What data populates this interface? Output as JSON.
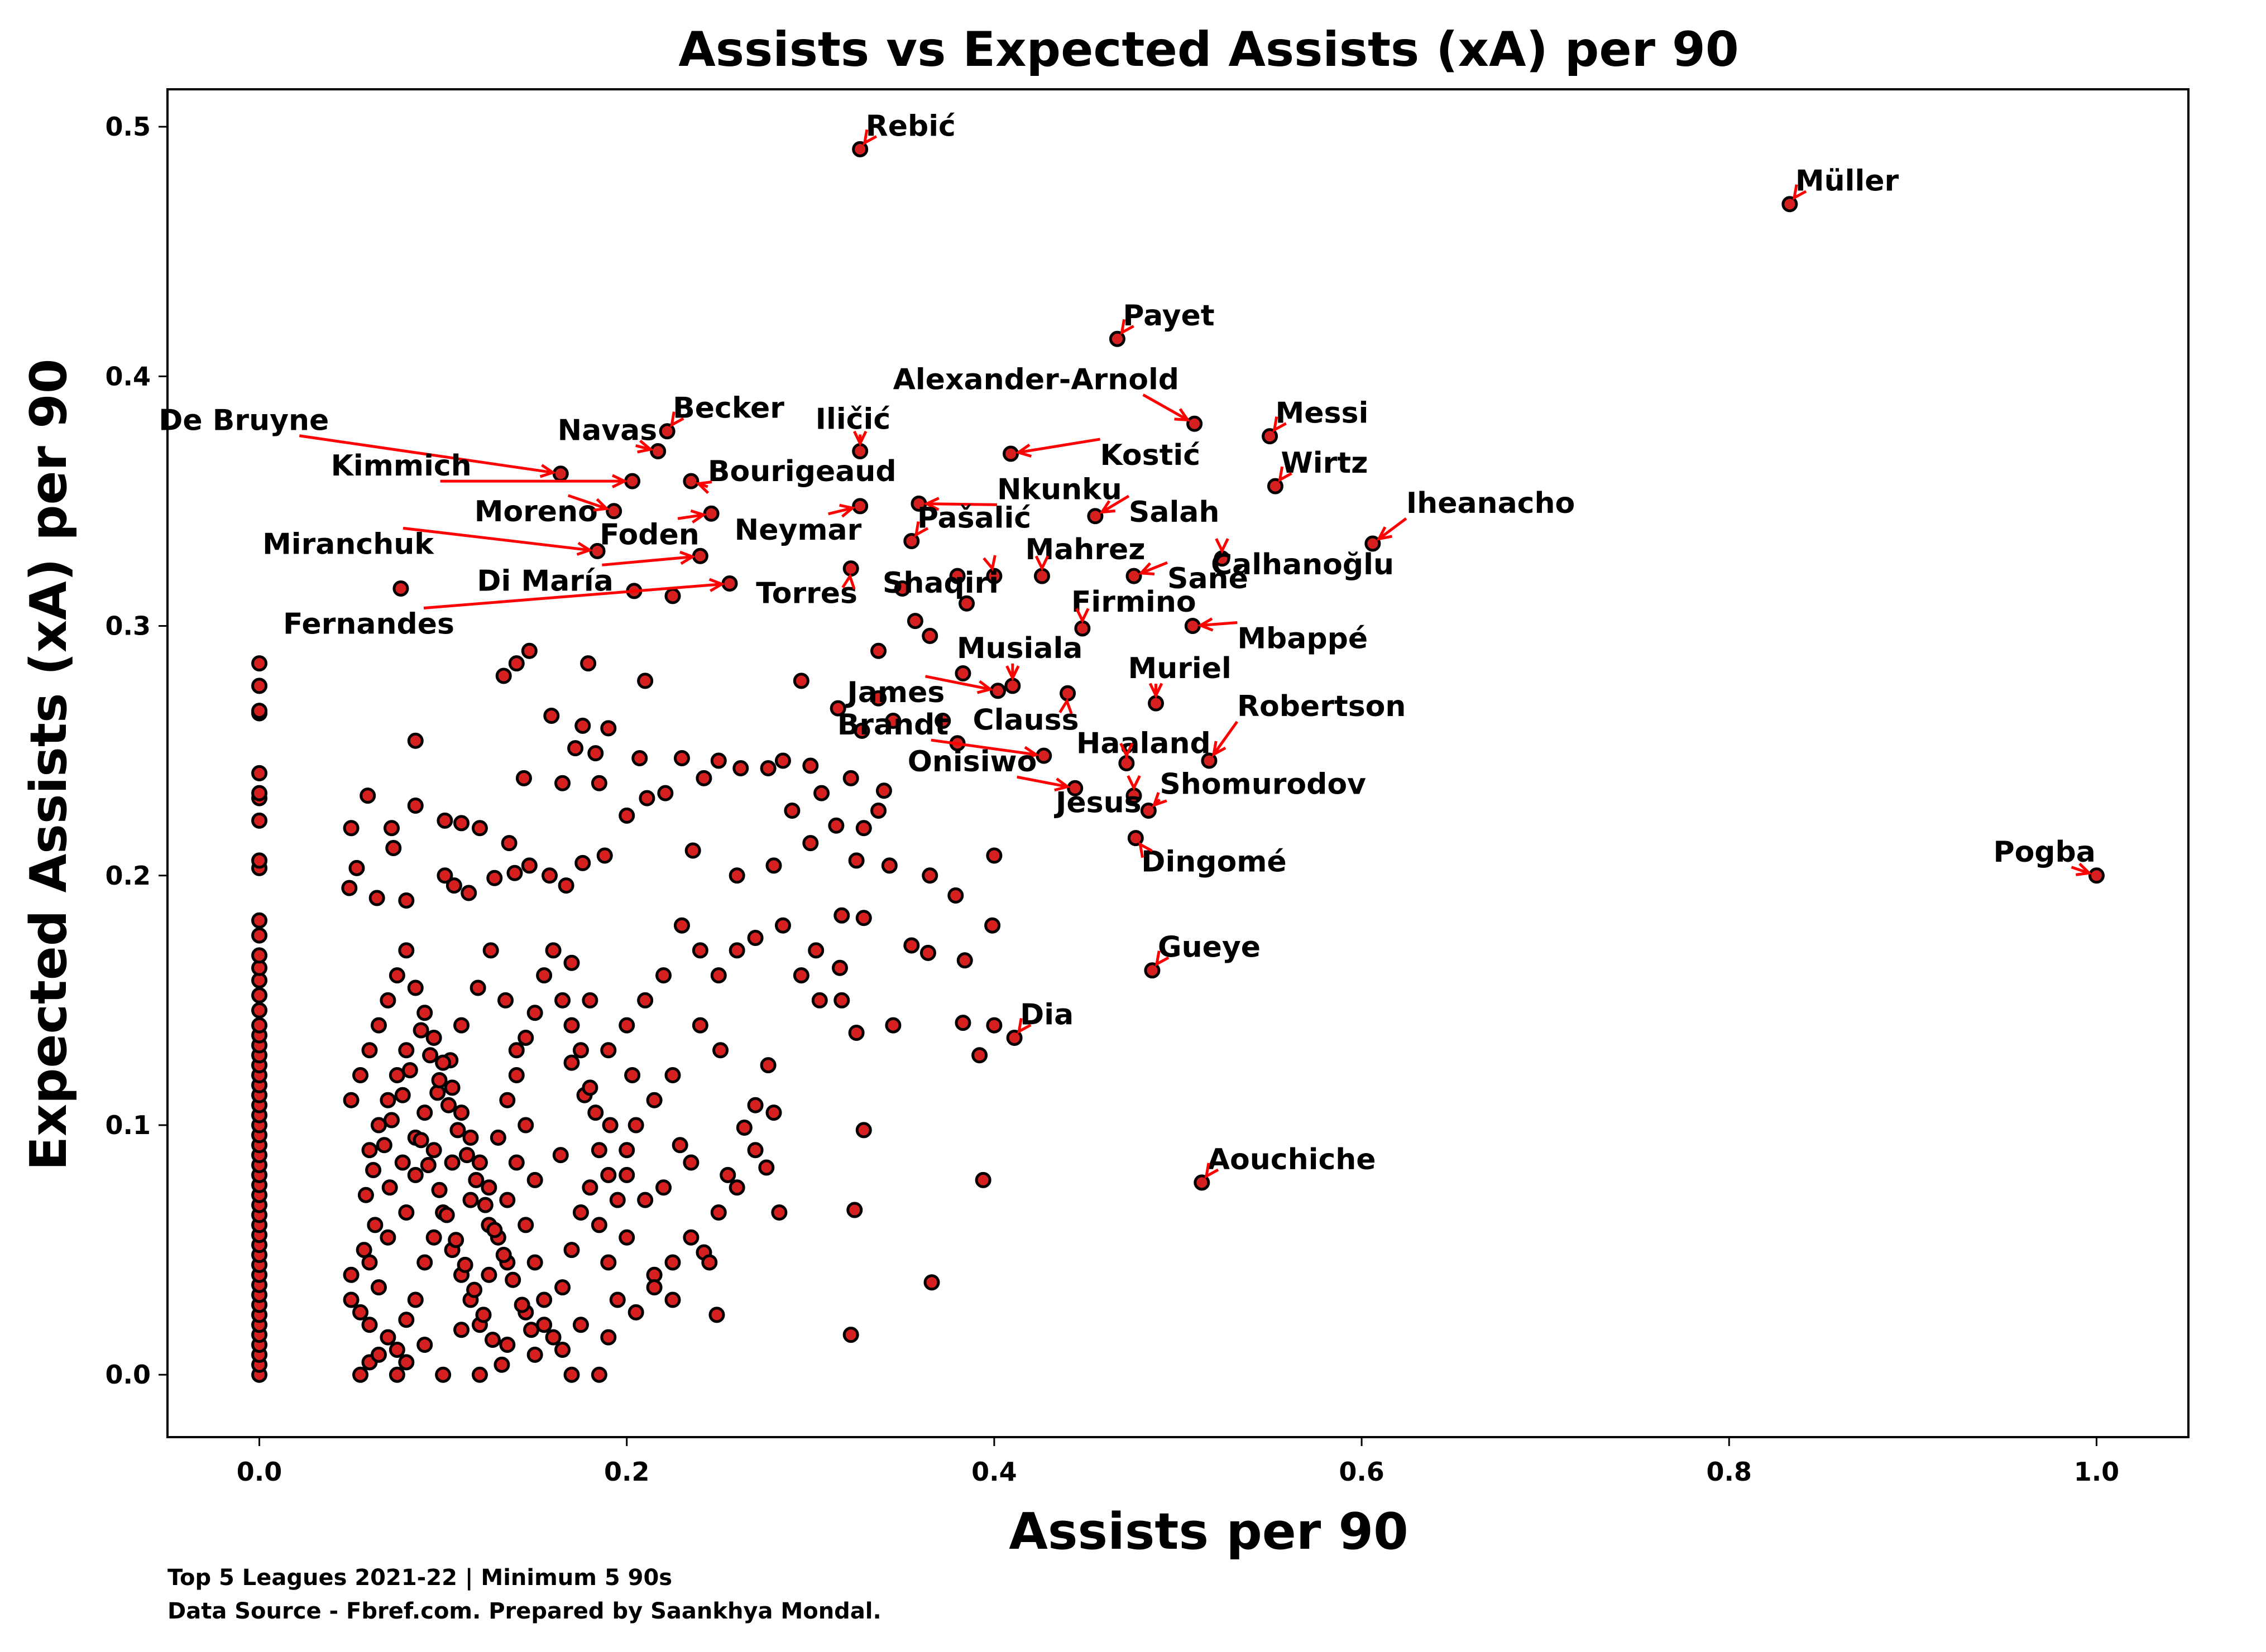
{
  "chart_data": {
    "type": "scatter",
    "title": "Assists vs Expected Assists (xA) per 90",
    "xlabel": "Assists per 90",
    "ylabel": "Expected Assists (xA) per 90",
    "xlim": [
      -0.05,
      1.05
    ],
    "ylim": [
      -0.025,
      0.515
    ],
    "xticks": [
      "0.0",
      "0.2",
      "0.4",
      "0.6",
      "0.8",
      "1.0"
    ],
    "yticks": [
      "0.0",
      "0.1",
      "0.2",
      "0.3",
      "0.4",
      "0.5"
    ],
    "grid": false,
    "marker_color": "#d61f1f",
    "marker_edge_color": "#000000",
    "arrow_color": "#ff0000",
    "footnote_line1": "Top 5 Leagues 2021-22 | Minimum 5 90s",
    "footnote_line2": "Data Source - Fbref.com. Prepared by Saankhya Mondal.",
    "labeled_points": [
      {
        "name": "Rebić",
        "x": 0.327,
        "y": 0.491
      },
      {
        "name": "Müller",
        "x": 0.833,
        "y": 0.469
      },
      {
        "name": "Payet",
        "x": 0.467,
        "y": 0.415
      },
      {
        "name": "Alexander-Arnold",
        "x": 0.509,
        "y": 0.381
      },
      {
        "name": "Messi",
        "x": 0.55,
        "y": 0.376
      },
      {
        "name": "Becker",
        "x": 0.222,
        "y": 0.378
      },
      {
        "name": "Navas",
        "x": 0.217,
        "y": 0.37
      },
      {
        "name": "Iličić",
        "x": 0.327,
        "y": 0.37
      },
      {
        "name": "Kostić",
        "x": 0.409,
        "y": 0.369
      },
      {
        "name": "De Bruyne",
        "x": 0.164,
        "y": 0.361
      },
      {
        "name": "Kimmich",
        "x": 0.203,
        "y": 0.358
      },
      {
        "name": "Bourigeaud",
        "x": 0.235,
        "y": 0.358
      },
      {
        "name": "Wirtz",
        "x": 0.553,
        "y": 0.356
      },
      {
        "name": "Nkunku",
        "x": 0.359,
        "y": 0.349
      },
      {
        "name": "Moreno",
        "x": 0.193,
        "y": 0.346
      },
      {
        "name": "Neymar",
        "x": 0.327,
        "y": 0.348
      },
      {
        "name": "Salah",
        "x": 0.455,
        "y": 0.344
      },
      {
        "name": "Foden",
        "x": 0.246,
        "y": 0.345
      },
      {
        "name": "Pašalić",
        "x": 0.355,
        "y": 0.334
      },
      {
        "name": "Iheanacho",
        "x": 0.606,
        "y": 0.333
      },
      {
        "name": "Miranchuk",
        "x": 0.184,
        "y": 0.33
      },
      {
        "name": "Calhanoğlu",
        "x": 0.524,
        "y": 0.327
      },
      {
        "name": "Di María",
        "x": 0.24,
        "y": 0.328
      },
      {
        "name": "Torres",
        "x": 0.322,
        "y": 0.323
      },
      {
        "name": "Mahrez",
        "x": 0.426,
        "y": 0.32
      },
      {
        "name": "Sané",
        "x": 0.476,
        "y": 0.32
      },
      {
        "name": "Shaqiri",
        "x": 0.4,
        "y": 0.32
      },
      {
        "name": "Fernandes",
        "x": 0.256,
        "y": 0.317
      },
      {
        "name": "Firmino",
        "x": 0.448,
        "y": 0.299
      },
      {
        "name": "Mbappé",
        "x": 0.508,
        "y": 0.3
      },
      {
        "name": "Musiala",
        "x": 0.41,
        "y": 0.276
      },
      {
        "name": "James",
        "x": 0.402,
        "y": 0.274
      },
      {
        "name": "Clauss",
        "x": 0.44,
        "y": 0.273
      },
      {
        "name": "Muriel",
        "x": 0.488,
        "y": 0.269
      },
      {
        "name": "Brandt",
        "x": 0.427,
        "y": 0.248
      },
      {
        "name": "Robertson",
        "x": 0.517,
        "y": 0.246
      },
      {
        "name": "Haaland",
        "x": 0.472,
        "y": 0.245
      },
      {
        "name": "Onisiwo",
        "x": 0.444,
        "y": 0.235
      },
      {
        "name": "Shomurodov",
        "x": 0.484,
        "y": 0.226
      },
      {
        "name": "Jesus",
        "x": 0.476,
        "y": 0.232
      },
      {
        "name": "Dingomé",
        "x": 0.477,
        "y": 0.215
      },
      {
        "name": "Pogba",
        "x": 1.0,
        "y": 0.2
      },
      {
        "name": "Gueye",
        "x": 0.486,
        "y": 0.162
      },
      {
        "name": "Dia",
        "x": 0.411,
        "y": 0.135
      },
      {
        "name": "Aouchiche",
        "x": 0.513,
        "y": 0.077
      }
    ],
    "points": [
      [
        0.077,
        0.315
      ],
      [
        0.204,
        0.314
      ],
      [
        0.225,
        0.312
      ],
      [
        0.337,
        0.29
      ],
      [
        0.147,
        0.29
      ],
      [
        0.14,
        0.285
      ],
      [
        0.179,
        0.285
      ],
      [
        0.133,
        0.28
      ],
      [
        0.21,
        0.278
      ],
      [
        0.295,
        0.278
      ],
      [
        0.383,
        0.281
      ],
      [
        0.357,
        0.302
      ],
      [
        0.365,
        0.296
      ],
      [
        0.35,
        0.315
      ],
      [
        0.38,
        0.32
      ],
      [
        0.385,
        0.309
      ],
      [
        0.23,
        0.247
      ],
      [
        0.242,
        0.239
      ],
      [
        0.25,
        0.246
      ],
      [
        0.262,
        0.243
      ],
      [
        0.277,
        0.243
      ],
      [
        0.285,
        0.246
      ],
      [
        0.3,
        0.244
      ],
      [
        0.322,
        0.239
      ],
      [
        0.315,
        0.267
      ],
      [
        0.337,
        0.271
      ],
      [
        0.345,
        0.262
      ],
      [
        0.372,
        0.262
      ],
      [
        0.38,
        0.253
      ],
      [
        0.328,
        0.258
      ],
      [
        0.337,
        0.226
      ],
      [
        0.34,
        0.234
      ],
      [
        0.159,
        0.264
      ],
      [
        0.172,
        0.251
      ],
      [
        0.183,
        0.249
      ],
      [
        0.176,
        0.26
      ],
      [
        0.19,
        0.259
      ],
      [
        0.207,
        0.247
      ],
      [
        0.221,
        0.233
      ],
      [
        0.185,
        0.237
      ],
      [
        0.165,
        0.237
      ],
      [
        0.144,
        0.239
      ],
      [
        0.136,
        0.213
      ],
      [
        0.12,
        0.219
      ],
      [
        0.11,
        0.221
      ],
      [
        0.101,
        0.222
      ],
      [
        0.085,
        0.254
      ],
      [
        0.085,
        0.228
      ],
      [
        0.059,
        0.232
      ],
      [
        0.05,
        0.219
      ],
      [
        0.072,
        0.219
      ],
      [
        0.073,
        0.211
      ],
      [
        0.053,
        0.203
      ],
      [
        0.049,
        0.195
      ],
      [
        0.064,
        0.191
      ],
      [
        0.08,
        0.19
      ],
      [
        0.101,
        0.2
      ],
      [
        0.106,
        0.196
      ],
      [
        0.114,
        0.193
      ],
      [
        0.128,
        0.199
      ],
      [
        0.139,
        0.201
      ],
      [
        0.147,
        0.204
      ],
      [
        0.158,
        0.2
      ],
      [
        0.167,
        0.196
      ],
      [
        0.176,
        0.205
      ],
      [
        0.188,
        0.208
      ],
      [
        0.2,
        0.224
      ],
      [
        0.211,
        0.231
      ],
      [
        0.236,
        0.21
      ],
      [
        0.26,
        0.2
      ],
      [
        0.28,
        0.204
      ],
      [
        0.29,
        0.226
      ],
      [
        0.3,
        0.213
      ],
      [
        0.306,
        0.233
      ],
      [
        0.314,
        0.22
      ],
      [
        0.325,
        0.206
      ],
      [
        0.329,
        0.219
      ],
      [
        0.343,
        0.204
      ],
      [
        0.365,
        0.2
      ],
      [
        0.379,
        0.192
      ],
      [
        0.4,
        0.208
      ],
      [
        0.399,
        0.18
      ],
      [
        0.384,
        0.166
      ],
      [
        0.364,
        0.169
      ],
      [
        0.355,
        0.172
      ],
      [
        0.329,
        0.183
      ],
      [
        0.317,
        0.184
      ],
      [
        0.303,
        0.17
      ],
      [
        0.316,
        0.163
      ],
      [
        0.317,
        0.15
      ],
      [
        0.325,
        0.137
      ],
      [
        0.345,
        0.14
      ],
      [
        0.383,
        0.141
      ],
      [
        0.392,
        0.128
      ],
      [
        0.4,
        0.14
      ],
      [
        0.394,
        0.078
      ],
      [
        0.366,
        0.037
      ],
      [
        0.329,
        0.098
      ],
      [
        0.324,
        0.066
      ],
      [
        0.322,
        0.016
      ],
      [
        0.283,
        0.065
      ],
      [
        0.276,
        0.083
      ],
      [
        0.27,
        0.108
      ],
      [
        0.277,
        0.124
      ],
      [
        0.264,
        0.099
      ],
      [
        0.251,
        0.13
      ],
      [
        0.255,
        0.08
      ],
      [
        0.249,
        0.024
      ],
      [
        0.242,
        0.049
      ],
      [
        0.235,
        0.085
      ],
      [
        0.229,
        0.092
      ],
      [
        0.22,
        0.075
      ],
      [
        0.2,
        0.08
      ],
      [
        0.2,
        0.09
      ],
      [
        0.203,
        0.12
      ],
      [
        0.191,
        0.1
      ],
      [
        0.183,
        0.105
      ],
      [
        0.177,
        0.112
      ],
      [
        0.17,
        0.125
      ],
      [
        0.164,
        0.088
      ],
      [
        0.15,
        0.078
      ],
      [
        0.145,
        0.1
      ],
      [
        0.14,
        0.13
      ],
      [
        0.134,
        0.15
      ],
      [
        0.126,
        0.17
      ],
      [
        0.119,
        0.155
      ],
      [
        0.11,
        0.14
      ],
      [
        0.104,
        0.126
      ],
      [
        0.097,
        0.113
      ],
      [
        0.09,
        0.105
      ],
      [
        0.085,
        0.095
      ],
      [
        0.078,
        0.085
      ],
      [
        0.071,
        0.075
      ],
      [
        0.063,
        0.06
      ],
      [
        0.057,
        0.05
      ],
      [
        0.05,
        0.04
      ],
      [
        0.05,
        0.03
      ],
      [
        0.055,
        0.025
      ],
      [
        0.06,
        0.02
      ],
      [
        0.065,
        0.035
      ],
      [
        0.07,
        0.015
      ],
      [
        0.075,
        0.01
      ],
      [
        0.08,
        0.022
      ],
      [
        0.085,
        0.03
      ],
      [
        0.09,
        0.045
      ],
      [
        0.095,
        0.055
      ],
      [
        0.1,
        0.065
      ],
      [
        0.105,
        0.05
      ],
      [
        0.11,
        0.04
      ],
      [
        0.115,
        0.03
      ],
      [
        0.12,
        0.02
      ],
      [
        0.125,
        0.04
      ],
      [
        0.13,
        0.055
      ],
      [
        0.135,
        0.07
      ],
      [
        0.14,
        0.085
      ],
      [
        0.145,
        0.06
      ],
      [
        0.15,
        0.045
      ],
      [
        0.155,
        0.03
      ],
      [
        0.16,
        0.015
      ],
      [
        0.165,
        0.035
      ],
      [
        0.17,
        0.05
      ],
      [
        0.175,
        0.065
      ],
      [
        0.18,
        0.075
      ],
      [
        0.185,
        0.06
      ],
      [
        0.19,
        0.045
      ],
      [
        0.195,
        0.03
      ],
      [
        0.2,
        0.055
      ],
      [
        0.21,
        0.07
      ],
      [
        0.215,
        0.04
      ],
      [
        0.225,
        0.03
      ],
      [
        0.235,
        0.055
      ],
      [
        0.245,
        0.045
      ],
      [
        0.25,
        0.065
      ],
      [
        0.26,
        0.075
      ],
      [
        0.27,
        0.09
      ],
      [
        0.28,
        0.105
      ],
      [
        0.05,
        0.11
      ],
      [
        0.055,
        0.12
      ],
      [
        0.06,
        0.13
      ],
      [
        0.065,
        0.14
      ],
      [
        0.07,
        0.15
      ],
      [
        0.075,
        0.16
      ],
      [
        0.08,
        0.17
      ],
      [
        0.085,
        0.155
      ],
      [
        0.09,
        0.145
      ],
      [
        0.095,
        0.135
      ],
      [
        0.1,
        0.125
      ],
      [
        0.105,
        0.115
      ],
      [
        0.11,
        0.105
      ],
      [
        0.115,
        0.095
      ],
      [
        0.12,
        0.085
      ],
      [
        0.125,
        0.075
      ],
      [
        0.13,
        0.095
      ],
      [
        0.135,
        0.11
      ],
      [
        0.14,
        0.12
      ],
      [
        0.145,
        0.135
      ],
      [
        0.15,
        0.145
      ],
      [
        0.155,
        0.16
      ],
      [
        0.16,
        0.17
      ],
      [
        0.165,
        0.15
      ],
      [
        0.17,
        0.14
      ],
      [
        0.175,
        0.13
      ],
      [
        0.18,
        0.115
      ],
      [
        0.185,
        0.09
      ],
      [
        0.19,
        0.08
      ],
      [
        0.195,
        0.07
      ],
      [
        0.205,
        0.1
      ],
      [
        0.215,
        0.11
      ],
      [
        0.225,
        0.12
      ],
      [
        0.24,
        0.14
      ],
      [
        0.25,
        0.16
      ],
      [
        0.26,
        0.17
      ],
      [
        0.27,
        0.175
      ],
      [
        0.285,
        0.18
      ],
      [
        0.295,
        0.16
      ],
      [
        0.305,
        0.15
      ],
      [
        0.24,
        0.17
      ],
      [
        0.23,
        0.18
      ],
      [
        0.22,
        0.16
      ],
      [
        0.21,
        0.15
      ],
      [
        0.2,
        0.14
      ],
      [
        0.19,
        0.13
      ],
      [
        0.18,
        0.15
      ],
      [
        0.17,
        0.165
      ],
      [
        0.055,
        0.0
      ],
      [
        0.06,
        0.005
      ],
      [
        0.065,
        0.008
      ],
      [
        0.075,
        0.0
      ],
      [
        0.08,
        0.005
      ],
      [
        0.09,
        0.012
      ],
      [
        0.1,
        0.0
      ],
      [
        0.11,
        0.018
      ],
      [
        0.12,
        0.0
      ],
      [
        0.135,
        0.012
      ],
      [
        0.15,
        0.008
      ],
      [
        0.17,
        0.0
      ],
      [
        0.185,
        0.0
      ],
      [
        0.06,
        0.045
      ],
      [
        0.07,
        0.055
      ],
      [
        0.08,
        0.065
      ],
      [
        0.085,
        0.08
      ],
      [
        0.095,
        0.09
      ],
      [
        0.105,
        0.085
      ],
      [
        0.115,
        0.07
      ],
      [
        0.125,
        0.06
      ],
      [
        0.135,
        0.045
      ],
      [
        0.145,
        0.025
      ],
      [
        0.155,
        0.02
      ],
      [
        0.165,
        0.01
      ],
      [
        0.175,
        0.02
      ],
      [
        0.19,
        0.015
      ],
      [
        0.205,
        0.025
      ],
      [
        0.215,
        0.035
      ],
      [
        0.225,
        0.045
      ],
      [
        0.06,
        0.09
      ],
      [
        0.065,
        0.1
      ],
      [
        0.07,
        0.11
      ],
      [
        0.075,
        0.12
      ],
      [
        0.08,
        0.13
      ],
      [
        0.088,
        0.138
      ],
      [
        0.093,
        0.128
      ],
      [
        0.098,
        0.118
      ],
      [
        0.103,
        0.108
      ],
      [
        0.108,
        0.098
      ],
      [
        0.113,
        0.088
      ],
      [
        0.118,
        0.078
      ],
      [
        0.123,
        0.068
      ],
      [
        0.128,
        0.058
      ],
      [
        0.133,
        0.048
      ],
      [
        0.138,
        0.038
      ],
      [
        0.143,
        0.028
      ],
      [
        0.148,
        0.018
      ],
      [
        0.058,
        0.072
      ],
      [
        0.062,
        0.082
      ],
      [
        0.068,
        0.092
      ],
      [
        0.072,
        0.102
      ],
      [
        0.078,
        0.112
      ],
      [
        0.082,
        0.122
      ],
      [
        0.088,
        0.094
      ],
      [
        0.092,
        0.084
      ],
      [
        0.098,
        0.074
      ],
      [
        0.102,
        0.064
      ],
      [
        0.107,
        0.054
      ],
      [
        0.112,
        0.044
      ],
      [
        0.117,
        0.034
      ],
      [
        0.122,
        0.024
      ],
      [
        0.127,
        0.014
      ],
      [
        0.132,
        0.004
      ]
    ],
    "zero_points": [
      0.0,
      0.004,
      0.008,
      0.012,
      0.016,
      0.02,
      0.024,
      0.028,
      0.032,
      0.036,
      0.04,
      0.044,
      0.048,
      0.052,
      0.056,
      0.06,
      0.064,
      0.068,
      0.072,
      0.076,
      0.08,
      0.084,
      0.088,
      0.092,
      0.096,
      0.1,
      0.104,
      0.108,
      0.112,
      0.116,
      0.12,
      0.124,
      0.128,
      0.132,
      0.136,
      0.14,
      0.146,
      0.152,
      0.158,
      0.163,
      0.168,
      0.176,
      0.182,
      0.203,
      0.206,
      0.222,
      0.231,
      0.233,
      0.241,
      0.265,
      0.266,
      0.276,
      0.285
    ]
  }
}
